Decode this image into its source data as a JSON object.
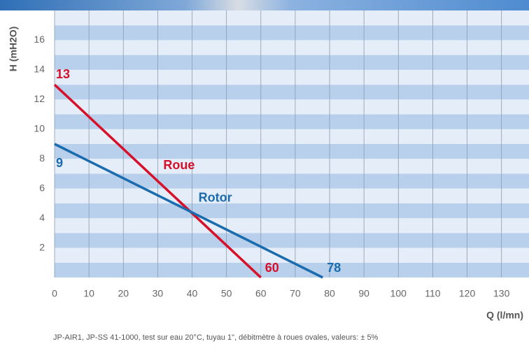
{
  "chart_data": {
    "type": "line",
    "y_label": "H (mH2O)",
    "x_label": "Q (l/mn)",
    "footnote": "JP-AIR1, JP-SS 41-1000, test sur eau 20°C, tuyau 1\", débitmètre à roues ovales, valeurs: ± 5%",
    "xlim": [
      0,
      138
    ],
    "ylim": [
      0,
      18
    ],
    "xticks": [
      0,
      10,
      20,
      30,
      40,
      50,
      60,
      70,
      80,
      90,
      100,
      110,
      120,
      130
    ],
    "yticks": [
      2,
      4,
      6,
      8,
      10,
      12,
      14,
      16
    ],
    "grid": true,
    "series": [
      {
        "name": "Roue",
        "color": "#d7102a",
        "x": [
          0,
          60
        ],
        "values": [
          13,
          0
        ],
        "annotations": [
          "13",
          "60"
        ]
      },
      {
        "name": "Rotor",
        "color": "#1a6cae",
        "x": [
          0,
          78
        ],
        "values": [
          9,
          0
        ],
        "annotations": [
          "9",
          "78"
        ]
      }
    ]
  }
}
